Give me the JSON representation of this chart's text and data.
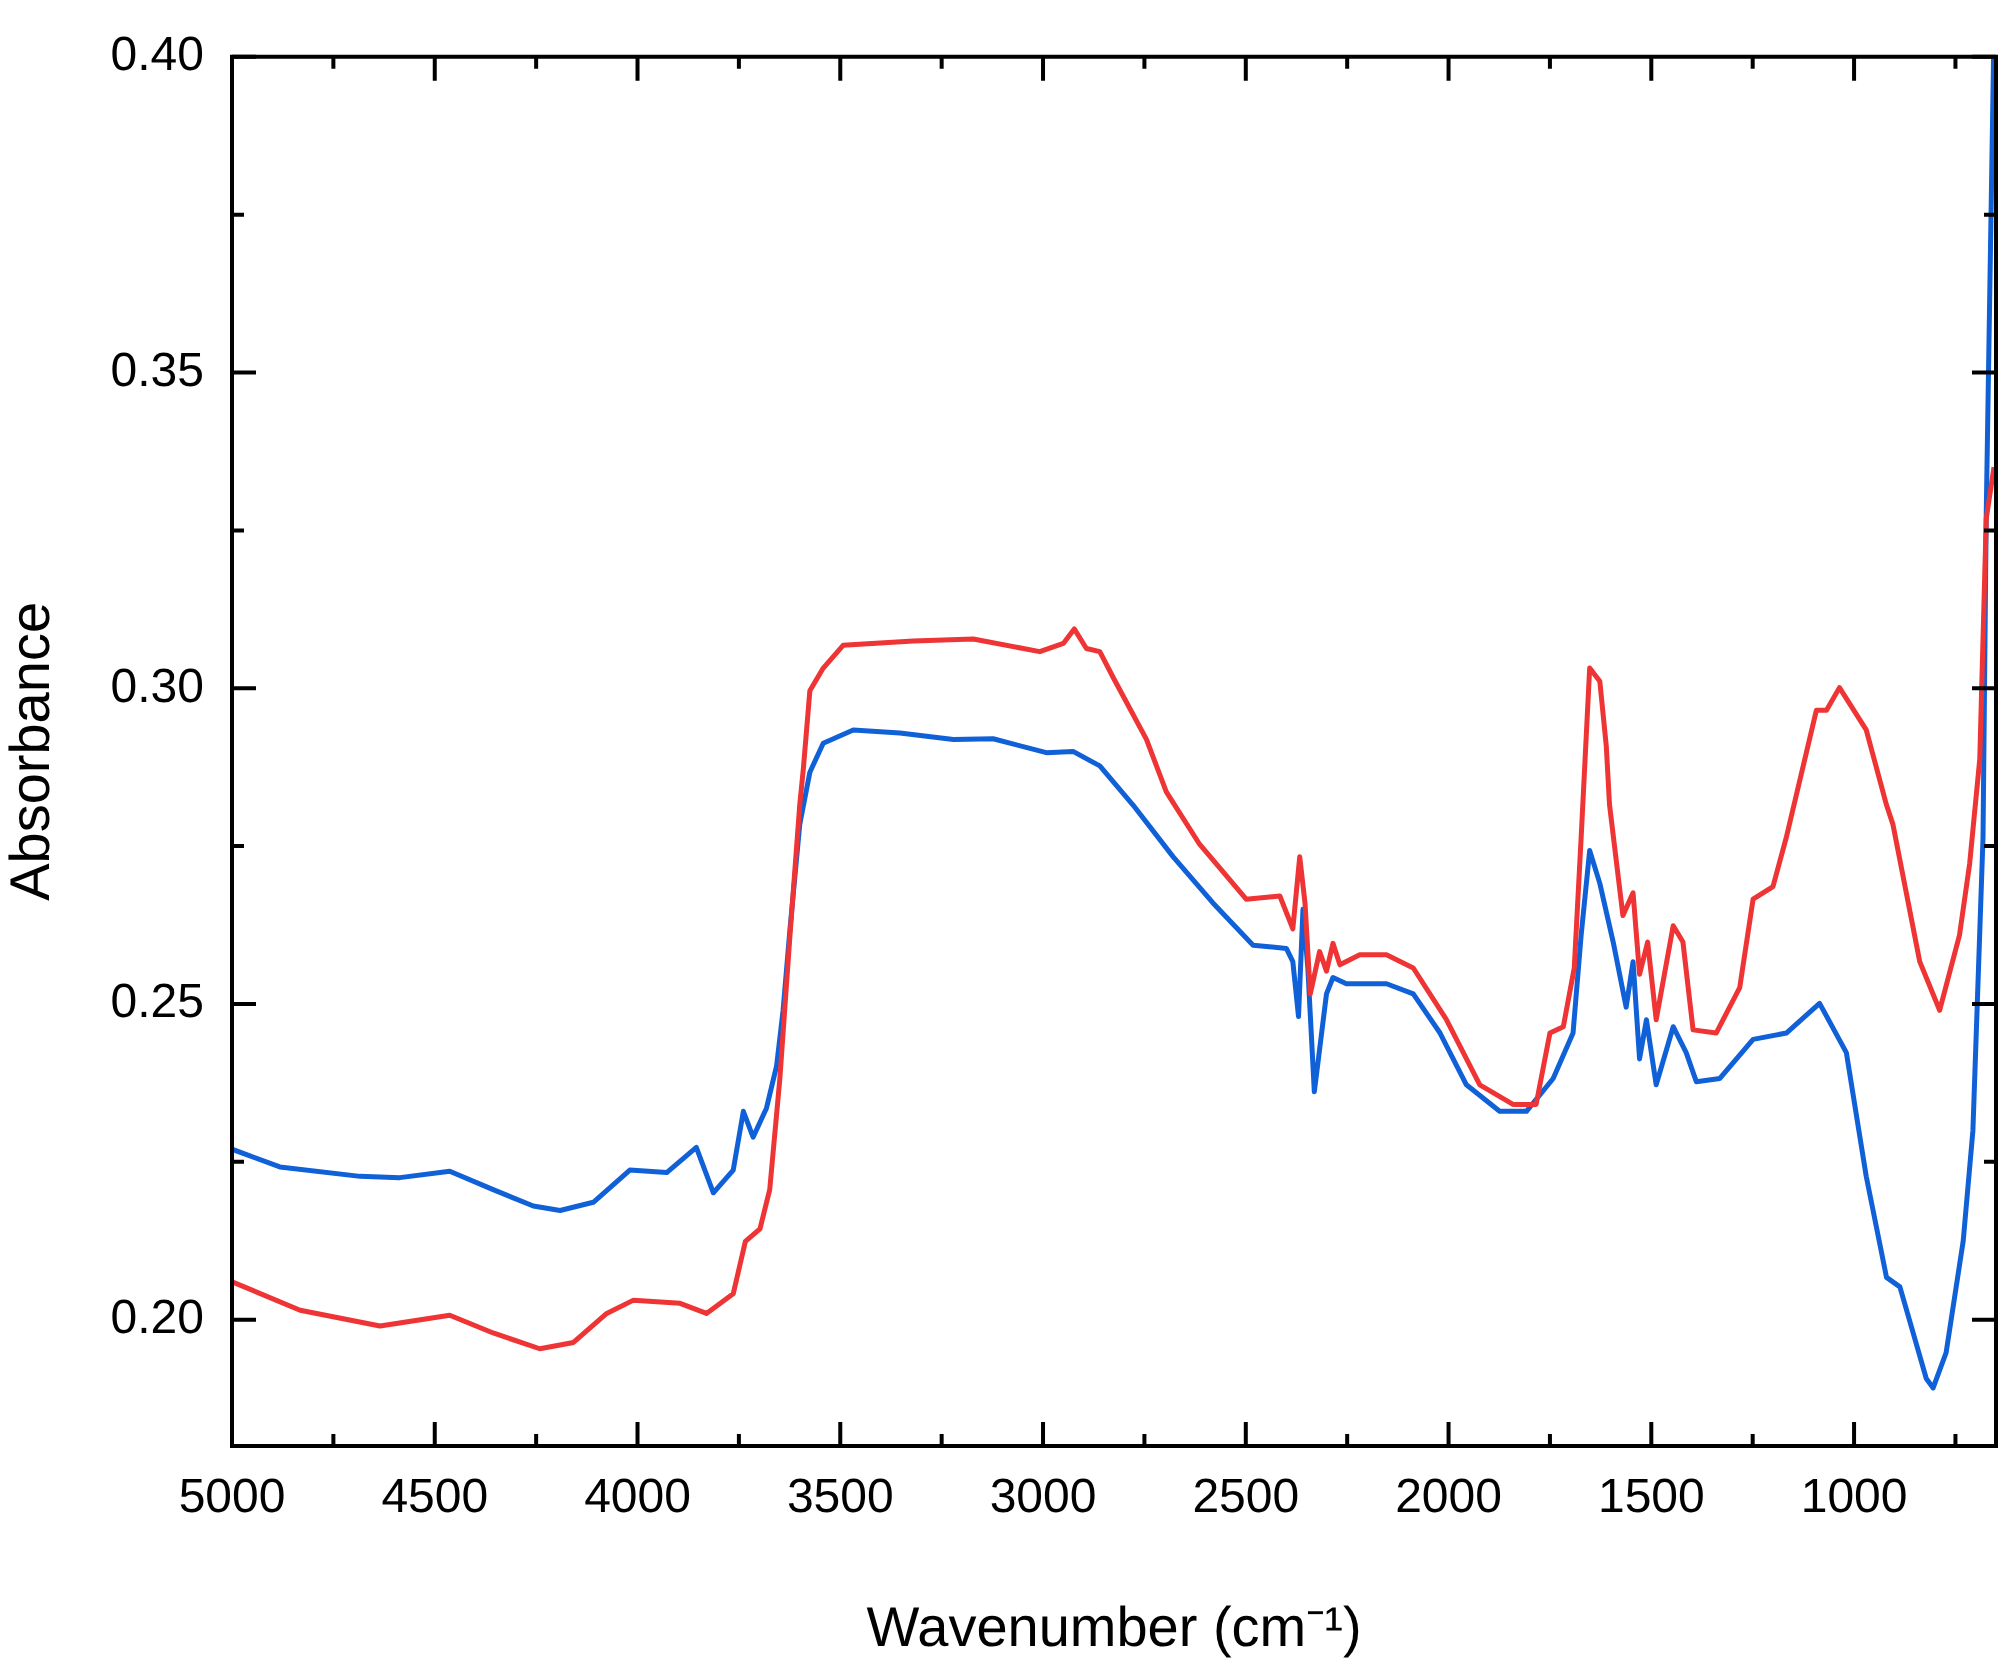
{
  "chart_data": {
    "type": "line",
    "xlabel": "Wavenumber (cm⁻¹)",
    "ylabel": "Absorbance",
    "xlim": [
      5000,
      650
    ],
    "ylim": [
      0.18,
      0.4
    ],
    "xticks": [
      5000,
      {
        "value": 4750,
        "label": null
      },
      4500,
      {
        "value": 4250,
        "label": null
      },
      4000,
      {
        "value": 3750,
        "label": null
      },
      3500,
      {
        "value": 3250,
        "label": null
      },
      3000,
      {
        "value": 2750,
        "label": null
      },
      2500,
      {
        "value": 2250,
        "label": null
      },
      2000,
      {
        "value": 1750,
        "label": null
      },
      1500,
      {
        "value": 1250,
        "label": null
      },
      1000,
      {
        "value": 750,
        "label": null
      }
    ],
    "yticks": [
      {
        "value": 0.2,
        "label": "0.20"
      },
      {
        "value": 0.225,
        "label": null
      },
      {
        "value": 0.25,
        "label": "0.25"
      },
      {
        "value": 0.275,
        "label": null
      },
      {
        "value": 0.3,
        "label": "0.30"
      },
      {
        "value": 0.325,
        "label": null
      },
      {
        "value": 0.35,
        "label": "0.35"
      },
      {
        "value": 0.375,
        "label": null
      },
      {
        "value": 0.4,
        "label": "0.40"
      }
    ],
    "grid": false,
    "legend": false,
    "line_style": "solid",
    "series": [
      {
        "color": "#ee3434",
        "x": [
          5000,
          4832,
          4635,
          4463,
          4356,
          4241,
          4158,
          4076,
          4010,
          3895,
          3830,
          3764,
          3734,
          3698,
          3674,
          3649,
          3624,
          3600,
          3591,
          3575,
          3542,
          3493,
          3320,
          3172,
          3008,
          2950,
          2923,
          2893,
          2860,
          2827,
          2745,
          2696,
          2614,
          2499,
          2416,
          2384,
          2367,
          2354,
          2341,
          2318,
          2301,
          2285,
          2268,
          2219,
          2153,
          2087,
          2005,
          1923,
          1841,
          1784,
          1750,
          1717,
          1690,
          1673,
          1652,
          1627,
          1611,
          1603,
          1570,
          1545,
          1529,
          1509,
          1488,
          1446,
          1422,
          1397,
          1340,
          1282,
          1249,
          1200,
          1167,
          1093,
          1068,
          1036,
          970,
          920,
          904,
          838,
          789,
          740,
          715,
          690,
          674,
          655
        ],
        "values": [
          0.206,
          0.2015,
          0.199,
          0.2007,
          0.1979,
          0.1954,
          0.1964,
          0.201,
          0.2031,
          0.2026,
          0.201,
          0.2041,
          0.2124,
          0.2144,
          0.2206,
          0.2382,
          0.2609,
          0.2815,
          0.2873,
          0.2996,
          0.3032,
          0.3068,
          0.3075,
          0.3078,
          0.3058,
          0.3071,
          0.3094,
          0.3063,
          0.3058,
          0.3017,
          0.2919,
          0.2836,
          0.2753,
          0.2666,
          0.2671,
          0.2619,
          0.2733,
          0.266,
          0.2516,
          0.2583,
          0.2552,
          0.2596,
          0.2562,
          0.2578,
          0.2578,
          0.2557,
          0.2475,
          0.2372,
          0.2341,
          0.2341,
          0.2454,
          0.2464,
          0.2557,
          0.2764,
          0.3032,
          0.3011,
          0.2908,
          0.2815,
          0.264,
          0.2676,
          0.2547,
          0.2598,
          0.2475,
          0.2624,
          0.2598,
          0.2459,
          0.2454,
          0.2526,
          0.2666,
          0.2686,
          0.2764,
          0.2965,
          0.2965,
          0.3001,
          0.2934,
          0.2815,
          0.2784,
          0.2567,
          0.249,
          0.2609,
          0.2722,
          0.2888,
          0.3269,
          0.335
        ]
      },
      {
        "color": "#1060d8",
        "x": [
          5000,
          4882,
          4684,
          4586,
          4463,
          4356,
          4257,
          4191,
          4109,
          4019,
          3928,
          3855,
          3813,
          3764,
          3739,
          3715,
          3682,
          3657,
          3641,
          3624,
          3600,
          3575,
          3542,
          3468,
          3353,
          3221,
          3123,
          2992,
          2926,
          2860,
          2778,
          2679,
          2581,
          2482,
          2400,
          2384,
          2370,
          2359,
          2347,
          2331,
          2301,
          2285,
          2252,
          2153,
          2087,
          2021,
          1956,
          1874,
          1808,
          1742,
          1693,
          1673,
          1652,
          1627,
          1594,
          1562,
          1545,
          1529,
          1512,
          1488,
          1446,
          1414,
          1389,
          1331,
          1249,
          1167,
          1085,
          1019,
          970,
          920,
          887,
          822,
          805,
          773,
          731,
          707,
          682,
          674,
          656
        ],
        "values": [
          0.227,
          0.2242,
          0.2227,
          0.2225,
          0.2235,
          0.2206,
          0.218,
          0.2173,
          0.2186,
          0.2237,
          0.2233,
          0.2273,
          0.2201,
          0.2237,
          0.233,
          0.2289,
          0.2335,
          0.2402,
          0.249,
          0.2619,
          0.2784,
          0.2867,
          0.2913,
          0.2934,
          0.2929,
          0.2919,
          0.292,
          0.2898,
          0.29,
          0.2877,
          0.2815,
          0.2733,
          0.266,
          0.2593,
          0.2588,
          0.2567,
          0.248,
          0.265,
          0.2557,
          0.2361,
          0.2516,
          0.2542,
          0.2532,
          0.2532,
          0.2516,
          0.2454,
          0.2372,
          0.233,
          0.233,
          0.2382,
          0.2454,
          0.2609,
          0.2743,
          0.2691,
          0.2598,
          0.2495,
          0.2567,
          0.2413,
          0.2475,
          0.2372,
          0.2464,
          0.2423,
          0.2377,
          0.2382,
          0.2444,
          0.2454,
          0.2501,
          0.2423,
          0.2227,
          0.2067,
          0.2052,
          0.1907,
          0.1892,
          0.1948,
          0.2124,
          0.2299,
          0.2764,
          0.328,
          0.4
        ]
      }
    ]
  }
}
